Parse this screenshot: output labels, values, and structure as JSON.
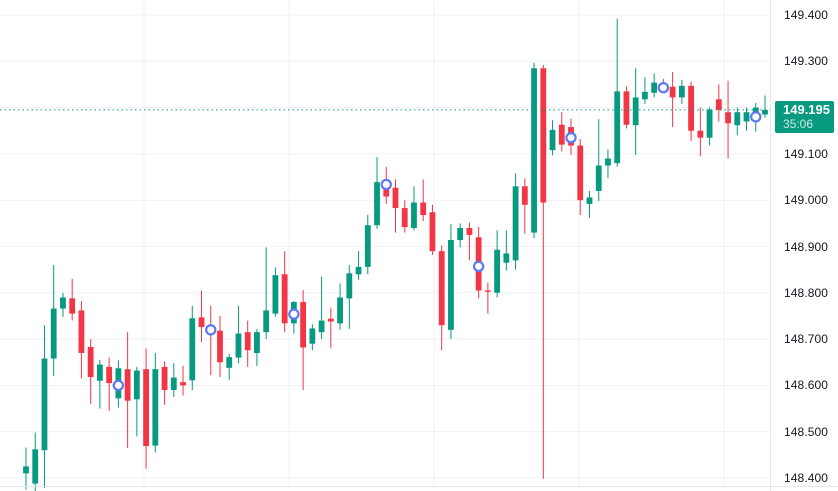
{
  "chart": {
    "background": "#ffffff",
    "up_color": "#089981",
    "down_color": "#f23645",
    "grid_color": "#eff1f5",
    "axis_text_color": "#131722",
    "axis_border_color": "#e6e8ee",
    "marker_ring_color": "#5b78f6",
    "marker_fill_color": "#ffffff",
    "price_line": {
      "price": 149.195,
      "color": "#089981",
      "style": "dotted"
    },
    "badge": {
      "price": "149.195",
      "countdown": "35:06",
      "bg": "#089981",
      "price_color": "#ffffff",
      "countdown_color": "#cfeae3"
    },
    "y_axis": {
      "min": 148.4,
      "max": 149.4,
      "step": 0.1,
      "visible_labels": [
        "149.400",
        "149.300",
        "149.100",
        "149.000",
        "148.900",
        "148.800",
        "148.700",
        "148.600",
        "148.500",
        "148.400"
      ]
    }
  },
  "chart_data": {
    "type": "candlestick",
    "ohlc_format": [
      "open",
      "high",
      "low",
      "close"
    ],
    "candles": [
      [
        148.41,
        148.466,
        148.375,
        148.425
      ],
      [
        148.388,
        148.498,
        148.368,
        148.462
      ],
      [
        148.46,
        148.73,
        148.378,
        148.658
      ],
      [
        148.658,
        148.86,
        148.62,
        148.766
      ],
      [
        148.766,
        148.8,
        148.748,
        148.79
      ],
      [
        148.788,
        148.83,
        148.74,
        148.755
      ],
      [
        148.762,
        148.782,
        148.615,
        148.67
      ],
      [
        148.683,
        148.7,
        148.56,
        148.618
      ],
      [
        148.61,
        148.655,
        148.55,
        148.645
      ],
      [
        148.64,
        148.66,
        148.545,
        148.605
      ],
      [
        148.572,
        148.654,
        148.552,
        148.637
      ],
      [
        148.635,
        148.715,
        148.465,
        148.567
      ],
      [
        148.57,
        148.64,
        148.49,
        148.632
      ],
      [
        148.635,
        148.68,
        148.42,
        148.469
      ],
      [
        148.47,
        148.67,
        148.455,
        148.635
      ],
      [
        148.64,
        148.652,
        148.558,
        148.59
      ],
      [
        148.59,
        148.648,
        148.575,
        148.617
      ],
      [
        148.607,
        148.642,
        148.578,
        148.6
      ],
      [
        148.611,
        148.772,
        148.59,
        148.745
      ],
      [
        148.747,
        148.805,
        148.693,
        148.726
      ],
      [
        148.72,
        148.772,
        148.622,
        148.718
      ],
      [
        148.718,
        148.75,
        148.618,
        148.65
      ],
      [
        148.638,
        148.668,
        148.612,
        148.661
      ],
      [
        148.66,
        148.772,
        148.648,
        148.712
      ],
      [
        148.715,
        148.74,
        148.64,
        148.676
      ],
      [
        148.67,
        148.722,
        148.642,
        148.715
      ],
      [
        148.715,
        148.898,
        148.7,
        148.762
      ],
      [
        148.755,
        148.855,
        148.748,
        148.838
      ],
      [
        148.84,
        148.89,
        148.715,
        148.734
      ],
      [
        148.734,
        148.782,
        148.712,
        148.78
      ],
      [
        148.78,
        148.806,
        148.59,
        148.682
      ],
      [
        148.69,
        148.732,
        148.676,
        148.723
      ],
      [
        148.715,
        148.835,
        148.7,
        148.74
      ],
      [
        148.744,
        148.768,
        148.68,
        148.738
      ],
      [
        148.734,
        148.82,
        148.72,
        148.79
      ],
      [
        148.788,
        148.86,
        148.722,
        148.842
      ],
      [
        148.84,
        148.89,
        148.828,
        148.856
      ],
      [
        148.856,
        148.968,
        148.84,
        148.946
      ],
      [
        148.946,
        149.093,
        148.938,
        149.039
      ],
      [
        149.04,
        149.072,
        148.992,
        149.008
      ],
      [
        149.027,
        149.045,
        148.93,
        148.983
      ],
      [
        148.983,
        149.0,
        148.93,
        148.942
      ],
      [
        148.94,
        149.03,
        148.935,
        148.995
      ],
      [
        148.995,
        149.045,
        148.955,
        148.968
      ],
      [
        148.974,
        148.99,
        148.882,
        148.89
      ],
      [
        148.89,
        148.902,
        148.676,
        148.73
      ],
      [
        148.72,
        148.948,
        148.7,
        148.914
      ],
      [
        148.914,
        148.95,
        148.898,
        148.94
      ],
      [
        148.94,
        148.952,
        148.87,
        148.925
      ],
      [
        148.92,
        148.942,
        148.788,
        148.805
      ],
      [
        148.805,
        148.822,
        148.755,
        148.802
      ],
      [
        148.8,
        148.935,
        148.79,
        148.893
      ],
      [
        148.865,
        148.935,
        148.848,
        148.885
      ],
      [
        148.87,
        149.058,
        148.85,
        149.03
      ],
      [
        149.03,
        149.047,
        148.928,
        148.99
      ],
      [
        148.93,
        149.297,
        148.918,
        149.285
      ],
      [
        149.285,
        149.292,
        148.398,
        148.995
      ],
      [
        149.108,
        149.173,
        149.097,
        149.152
      ],
      [
        149.163,
        149.19,
        149.105,
        149.12
      ],
      [
        149.158,
        149.176,
        149.098,
        149.118
      ],
      [
        149.118,
        149.132,
        148.968,
        149.0
      ],
      [
        148.992,
        149.02,
        148.962,
        149.006
      ],
      [
        149.02,
        149.175,
        148.998,
        149.075
      ],
      [
        149.075,
        149.11,
        149.048,
        149.09
      ],
      [
        149.08,
        149.392,
        149.072,
        149.235
      ],
      [
        149.235,
        149.246,
        149.155,
        149.163
      ],
      [
        149.162,
        149.285,
        149.098,
        149.222
      ],
      [
        149.218,
        149.266,
        149.208,
        149.234
      ],
      [
        149.232,
        149.274,
        149.222,
        149.254
      ],
      [
        149.252,
        149.262,
        149.232,
        149.238
      ],
      [
        149.245,
        149.277,
        149.158,
        149.222
      ],
      [
        149.222,
        149.26,
        149.208,
        149.247
      ],
      [
        149.247,
        149.256,
        149.128,
        149.15
      ],
      [
        149.15,
        149.2,
        149.095,
        149.135
      ],
      [
        149.135,
        149.2,
        149.118,
        149.196
      ],
      [
        149.218,
        149.25,
        149.17,
        149.195
      ],
      [
        149.19,
        149.258,
        149.09,
        149.166
      ],
      [
        149.162,
        149.2,
        149.14,
        149.19
      ],
      [
        149.17,
        149.2,
        149.15,
        149.19
      ],
      [
        149.176,
        149.21,
        149.148,
        149.2
      ],
      [
        149.185,
        149.226,
        149.178,
        149.195
      ]
    ],
    "markers": [
      {
        "index": 10,
        "price": 148.6
      },
      {
        "index": 20,
        "price": 148.72
      },
      {
        "index": 29,
        "price": 148.754
      },
      {
        "index": 39,
        "price": 149.034
      },
      {
        "index": 49,
        "price": 148.857
      },
      {
        "index": 59,
        "price": 149.135
      },
      {
        "index": 69,
        "price": 149.243
      },
      {
        "index": 79,
        "price": 149.18
      }
    ],
    "current_price": 149.195,
    "countdown": "35:06",
    "title": "",
    "xlabel": "",
    "ylabel": "",
    "ylim": [
      148.4,
      149.4
    ],
    "grid": true,
    "legend": "none"
  }
}
